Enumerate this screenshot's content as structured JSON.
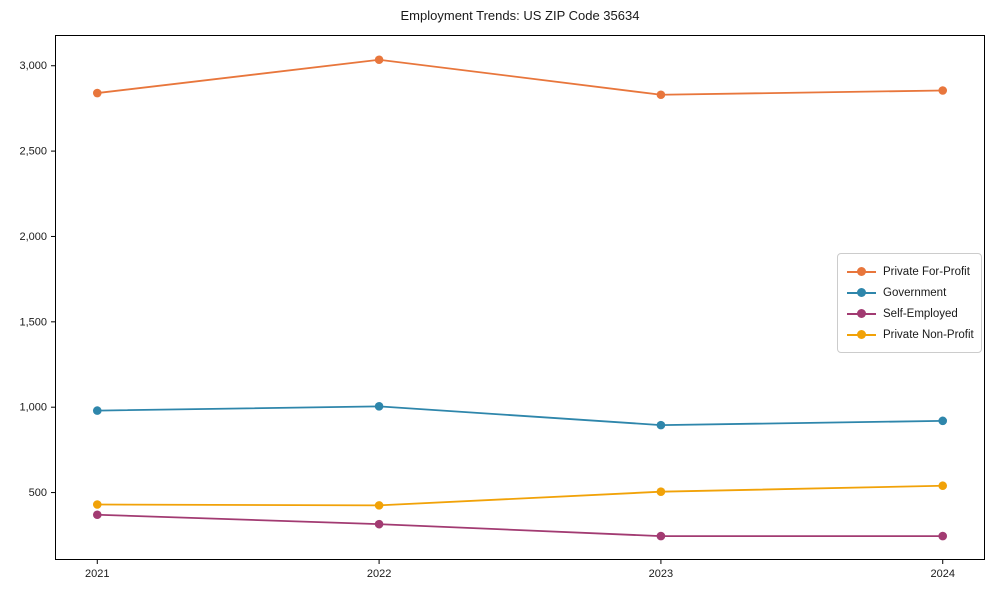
{
  "chart_data": {
    "type": "line",
    "title": "Employment Trends: US ZIP Code 35634",
    "xlabel": "",
    "ylabel": "",
    "x": [
      2021,
      2022,
      2023,
      2024
    ],
    "x_tick_labels": [
      "2021",
      "2022",
      "2023",
      "2024"
    ],
    "y_tick_values": [
      500,
      1000,
      1500,
      2000,
      2500,
      3000
    ],
    "y_tick_labels": [
      "500",
      "1,000",
      "1,500",
      "2,000",
      "2,500",
      "3,000"
    ],
    "xlim": [
      2020.85,
      2024.15
    ],
    "ylim": [
      105,
      3180
    ],
    "grid": false,
    "legend_position": "center-right",
    "marker": "circle",
    "series": [
      {
        "name": "Private For-Profit",
        "color": "#E8763C",
        "values": [
          2840,
          3035,
          2830,
          2855
        ]
      },
      {
        "name": "Government",
        "color": "#2E86AB",
        "values": [
          980,
          1005,
          895,
          920
        ]
      },
      {
        "name": "Self-Employed",
        "color": "#A23B72",
        "values": [
          370,
          315,
          245,
          245
        ]
      },
      {
        "name": "Private Non-Profit",
        "color": "#F1A208",
        "values": [
          430,
          425,
          505,
          540
        ]
      }
    ],
    "axis_color": "#000000"
  }
}
